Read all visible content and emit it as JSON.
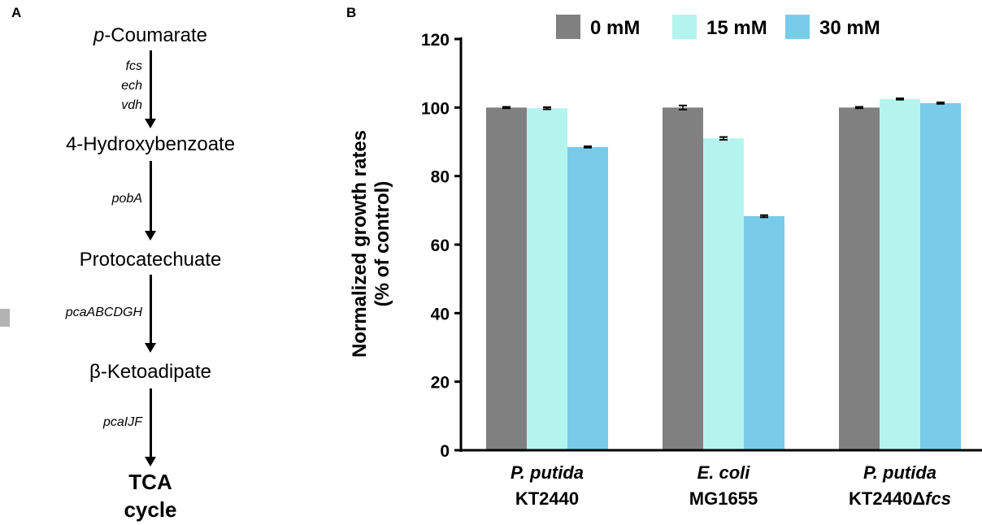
{
  "panels": {
    "a_label": "A",
    "b_label": "B"
  },
  "pathway": {
    "metabolites": [
      {
        "prefix": "p",
        "name": "-Coumarate"
      },
      {
        "prefix": "",
        "name": "4-Hydroxybenzoate"
      },
      {
        "prefix": "",
        "name": "Protocatechuate"
      },
      {
        "prefix": "",
        "name": "β-Ketoadipate"
      }
    ],
    "final": {
      "line1": "TCA",
      "line2": "cycle"
    },
    "enzymes": [
      "fcs",
      "ech",
      "vdh",
      "pobA",
      "pcaABCDGH",
      "pcaIJF"
    ]
  },
  "chart_data": {
    "type": "bar",
    "title": "",
    "ylabel_line1": "Normalized growth rates",
    "ylabel_line2": "(% of control)",
    "xlabel": "",
    "ylim": [
      0,
      120
    ],
    "yticks": [
      "0",
      "20",
      "40",
      "60",
      "80",
      "100",
      "120"
    ],
    "categories": [
      {
        "line1": "P. putida",
        "line2": "KT2440",
        "line2_italic_suffix": ""
      },
      {
        "line1": "E. coli",
        "line2": "MG1655",
        "line2_italic_suffix": ""
      },
      {
        "line1": "P. putida",
        "line2": "KT2440Δ",
        "line2_italic_suffix": "fcs"
      }
    ],
    "series": [
      {
        "name": "0 mM",
        "color": "#808080",
        "values": [
          100,
          100,
          100
        ],
        "errors": [
          0.2,
          0.6,
          0.2
        ]
      },
      {
        "name": "15 mM",
        "color": "#b3f5ee",
        "values": [
          99.8,
          91,
          102.5
        ],
        "errors": [
          0.3,
          0.4,
          0.2
        ]
      },
      {
        "name": "30 mM",
        "color": "#79cbea",
        "values": [
          88.5,
          68.3,
          101.3
        ],
        "errors": [
          0.2,
          0.3,
          0.2
        ]
      }
    ],
    "legend_position": "top",
    "grid": false
  }
}
